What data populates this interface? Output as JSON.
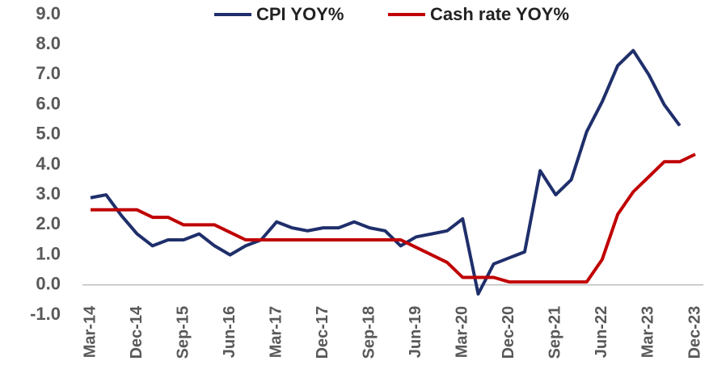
{
  "chart_data": {
    "type": "line",
    "categories": [
      "Mar-14",
      null,
      null,
      "Dec-14",
      null,
      null,
      "Sep-15",
      null,
      null,
      "Jun-16",
      null,
      null,
      "Mar-17",
      null,
      null,
      "Dec-17",
      null,
      null,
      "Sep-18",
      null,
      null,
      "Jun-19",
      null,
      null,
      "Mar-20",
      null,
      null,
      "Dec-20",
      null,
      null,
      "Sep-21",
      null,
      null,
      "Jun-22",
      null,
      null,
      "Mar-23",
      null,
      null,
      "Dec-23"
    ],
    "series": [
      {
        "name": "CPI YOY%",
        "color": "#1f2f6b",
        "values": [
          2.9,
          3.0,
          2.3,
          1.7,
          1.3,
          1.5,
          1.5,
          1.7,
          1.3,
          1.0,
          1.3,
          1.5,
          2.1,
          1.9,
          1.8,
          1.9,
          1.9,
          2.1,
          1.9,
          1.8,
          1.3,
          1.6,
          1.7,
          1.8,
          2.2,
          -0.3,
          0.7,
          0.9,
          1.1,
          3.8,
          3.0,
          3.5,
          5.1,
          6.1,
          7.3,
          7.8,
          7.0,
          6.0,
          5.3,
          null
        ]
      },
      {
        "name": "Cash rate YOY%",
        "color": "#c00000",
        "values": [
          2.5,
          2.5,
          2.5,
          2.5,
          2.25,
          2.25,
          2.0,
          2.0,
          2.0,
          1.75,
          1.5,
          1.5,
          1.5,
          1.5,
          1.5,
          1.5,
          1.5,
          1.5,
          1.5,
          1.5,
          1.5,
          1.25,
          1.0,
          0.75,
          0.25,
          0.25,
          0.25,
          0.1,
          0.1,
          0.1,
          0.1,
          0.1,
          0.1,
          0.85,
          2.35,
          3.1,
          3.6,
          4.1,
          4.1,
          4.35
        ]
      }
    ],
    "ylim": [
      -1,
      9
    ],
    "yticks": [
      {
        "value": -1,
        "label": "-1.0"
      },
      {
        "value": 0,
        "label": "0.0"
      },
      {
        "value": 1,
        "label": "1.0"
      },
      {
        "value": 2,
        "label": "2.0"
      },
      {
        "value": 3,
        "label": "3.0"
      },
      {
        "value": 4,
        "label": "4.0"
      },
      {
        "value": 5,
        "label": "5.0"
      },
      {
        "value": 6,
        "label": "6.0"
      },
      {
        "value": 7,
        "label": "7.0"
      },
      {
        "value": 8,
        "label": "8.0"
      },
      {
        "value": 9,
        "label": "9.0"
      }
    ],
    "legend": "top"
  }
}
